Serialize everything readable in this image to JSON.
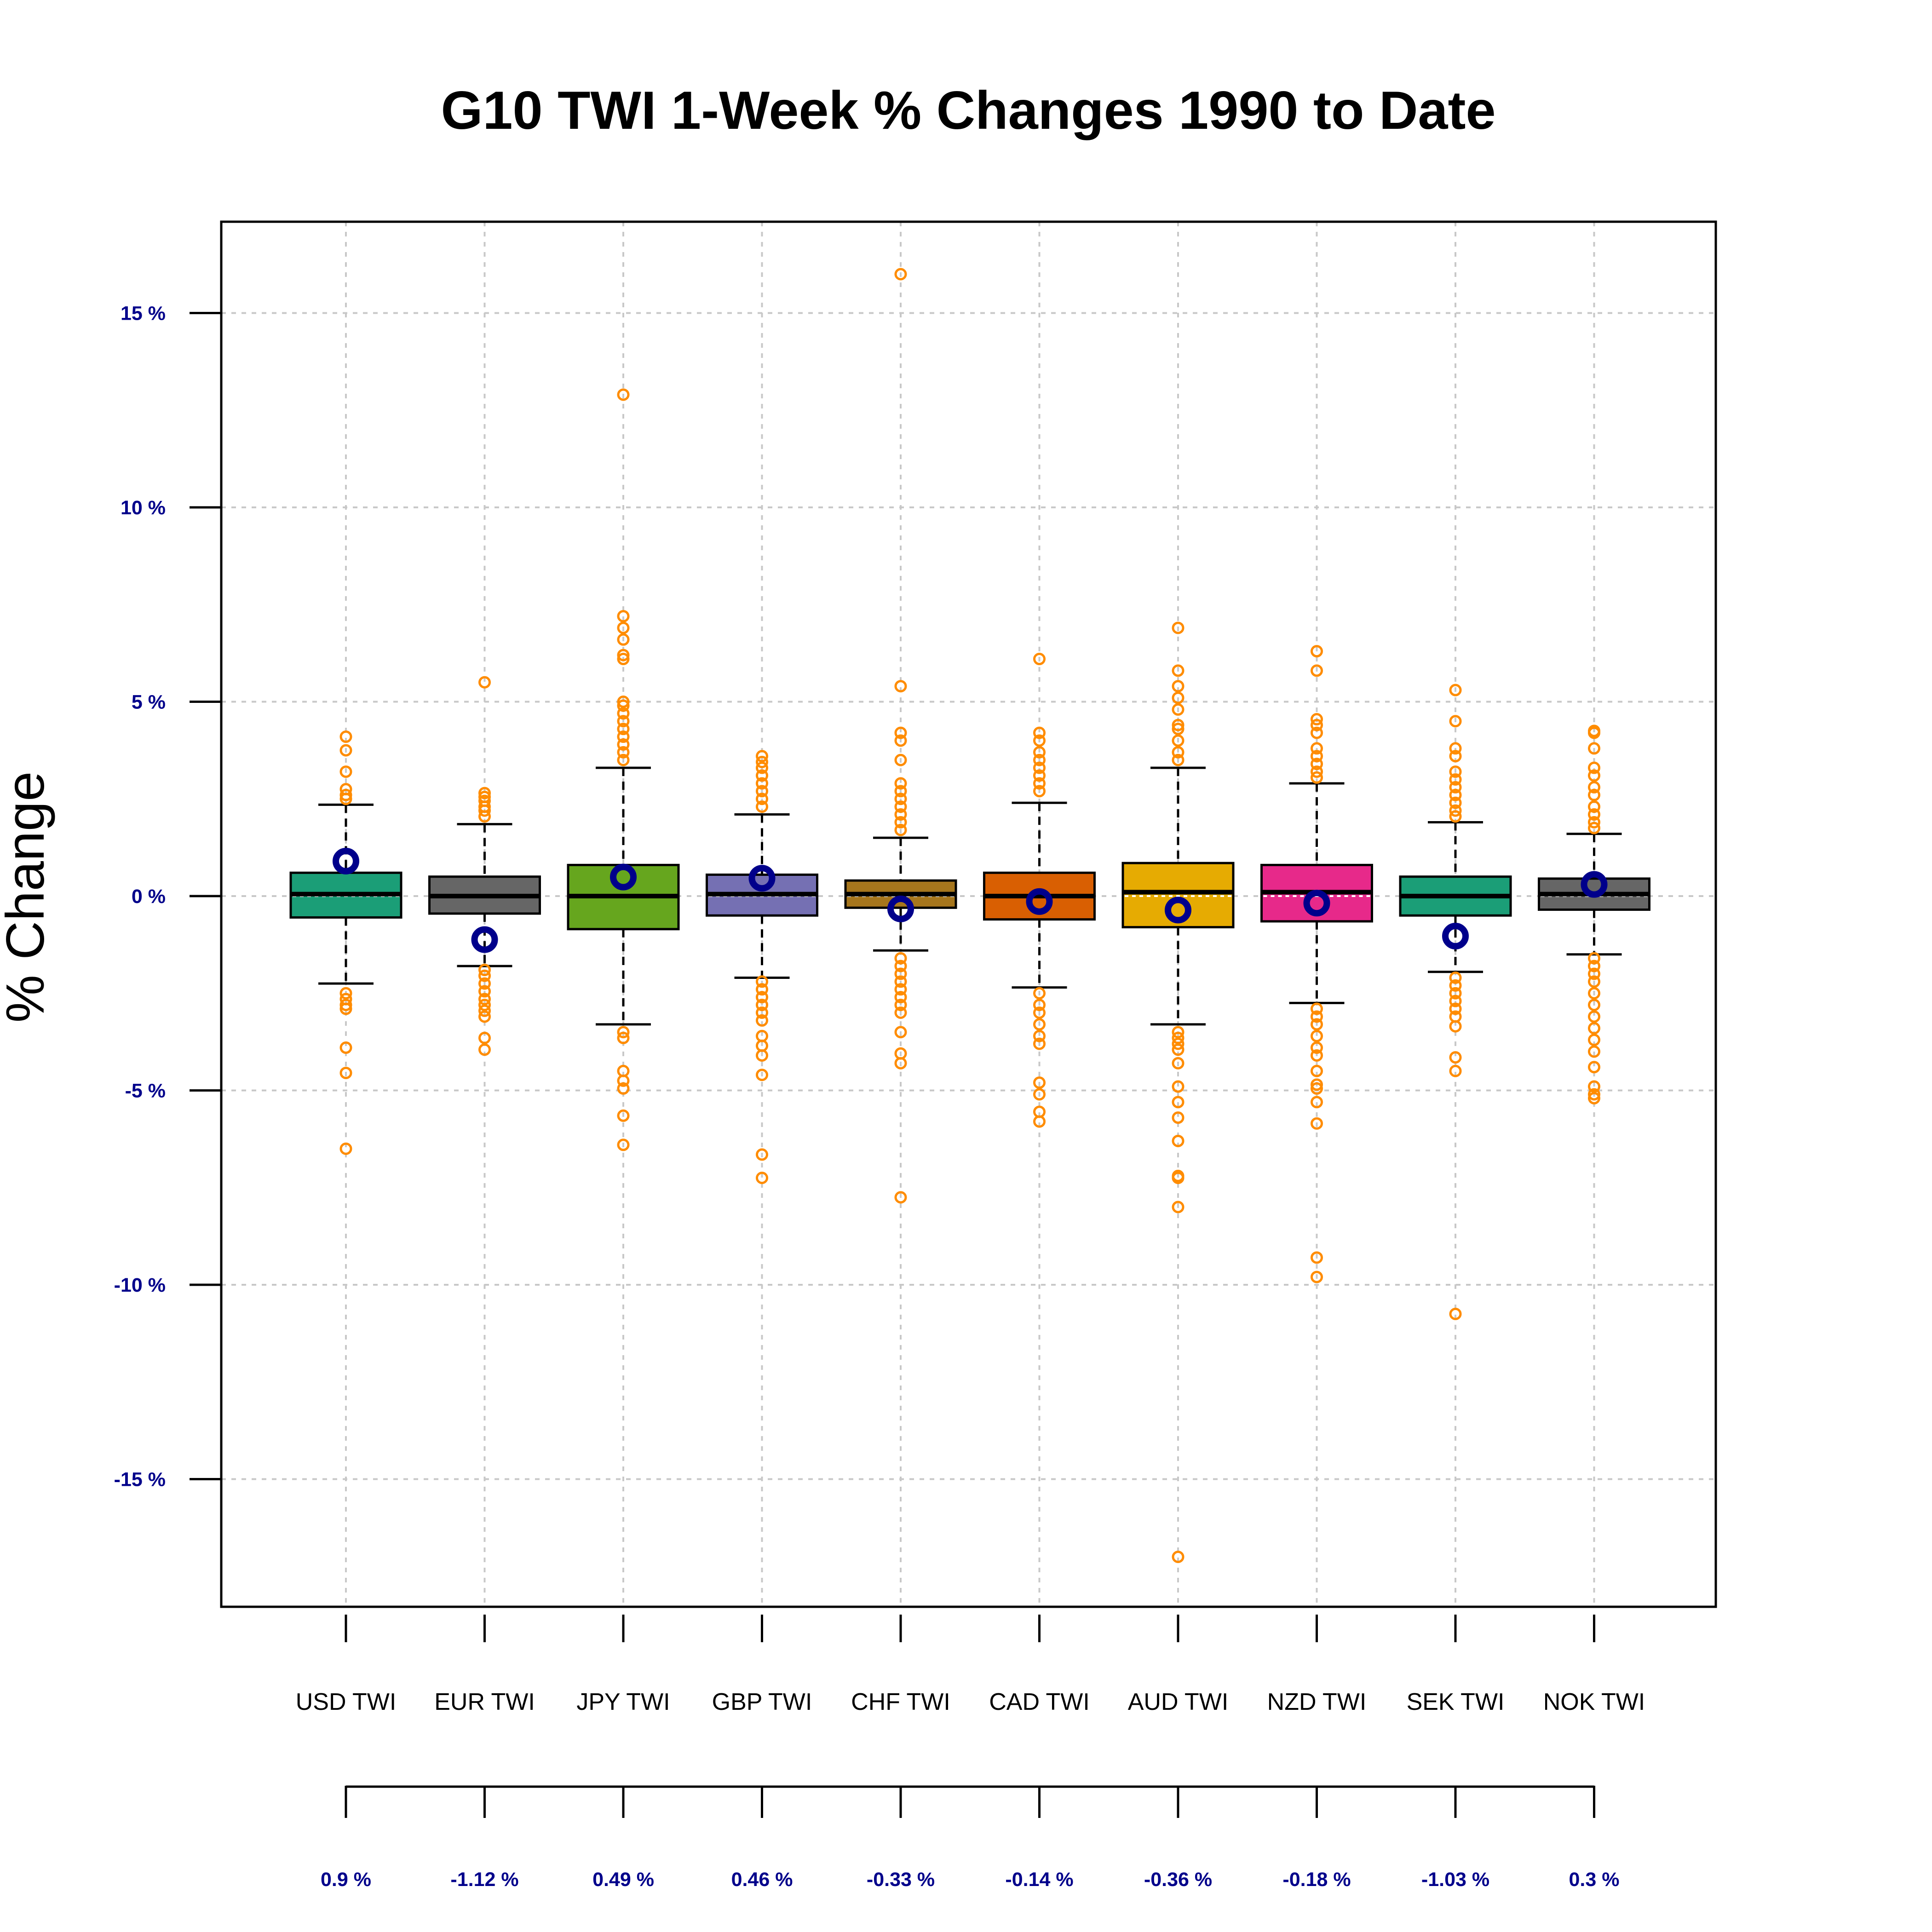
{
  "chart_data": {
    "type": "box",
    "title": "G10 TWI 1-Week % Changes 1990 to Date",
    "ylabel": "% Change",
    "xlabel": "",
    "ylim": [
      -18,
      17
    ],
    "yticks": [
      15,
      10,
      5,
      0,
      -5,
      -10,
      -15
    ],
    "ytick_labels": [
      "15 %",
      "10 %",
      "5 %",
      "0 %",
      "-5 %",
      "-10 %",
      "-15 %"
    ],
    "grid": true,
    "colors": {
      "outlier": "#FF8C00",
      "latest_marker": "#00008B",
      "tick_text": "#00008B",
      "grid": "#c8c8c8"
    },
    "series": [
      {
        "category": "USD TWI",
        "color": "#1B9E77",
        "whisker_low": -2.25,
        "q1": -0.55,
        "median": 0.05,
        "q3": 0.6,
        "whisker_high": 2.35,
        "latest": 0.9,
        "latest_label": "0.9 %",
        "outliers": [
          4.1,
          3.75,
          3.2,
          2.75,
          2.6,
          2.5,
          -2.5,
          -2.65,
          -2.8,
          -2.9,
          -3.9,
          -4.55,
          -6.5
        ]
      },
      {
        "category": "EUR TWI",
        "color": "#666666",
        "whisker_low": -1.8,
        "q1": -0.45,
        "median": 0.0,
        "q3": 0.5,
        "whisker_high": 1.85,
        "latest": -1.12,
        "latest_label": "-1.12 %",
        "outliers": [
          5.5,
          2.65,
          2.55,
          2.45,
          2.3,
          2.2,
          2.05,
          -1.9,
          -2.05,
          -2.25,
          -2.45,
          -2.65,
          -2.8,
          -2.95,
          -3.1,
          -3.65,
          -3.95
        ]
      },
      {
        "category": "JPY TWI",
        "color": "#66A61E",
        "whisker_low": -3.3,
        "q1": -0.85,
        "median": 0.0,
        "q3": 0.8,
        "whisker_high": 3.3,
        "latest": 0.49,
        "latest_label": "0.49 %",
        "outliers": [
          12.9,
          7.2,
          6.9,
          6.6,
          6.2,
          6.1,
          5.0,
          4.9,
          4.7,
          4.5,
          4.3,
          4.1,
          3.9,
          3.7,
          3.5,
          -3.5,
          -3.65,
          -4.5,
          -4.75,
          -4.95,
          -5.65,
          -6.4
        ]
      },
      {
        "category": "GBP TWI",
        "color": "#7570B3",
        "whisker_low": -2.1,
        "q1": -0.5,
        "median": 0.05,
        "q3": 0.55,
        "whisker_high": 2.1,
        "latest": 0.46,
        "latest_label": "0.46 %",
        "outliers": [
          3.6,
          3.45,
          3.3,
          3.1,
          2.9,
          2.7,
          2.5,
          2.3,
          -2.2,
          -2.4,
          -2.6,
          -2.8,
          -3.0,
          -3.2,
          -3.6,
          -3.85,
          -4.1,
          -4.6,
          -6.65,
          -7.25
        ]
      },
      {
        "category": "CHF TWI",
        "color": "#A6761D",
        "whisker_low": -1.4,
        "q1": -0.3,
        "median": 0.05,
        "q3": 0.4,
        "whisker_high": 1.5,
        "latest": -0.33,
        "latest_label": "-0.33 %",
        "outliers": [
          16.0,
          5.4,
          4.2,
          4.0,
          3.5,
          2.9,
          2.7,
          2.5,
          2.3,
          2.1,
          1.9,
          1.7,
          -1.6,
          -1.8,
          -2.0,
          -2.2,
          -2.4,
          -2.6,
          -2.8,
          -3.0,
          -3.5,
          -4.05,
          -4.3,
          -7.75
        ]
      },
      {
        "category": "CAD TWI",
        "color": "#D95F02",
        "whisker_low": -2.35,
        "q1": -0.6,
        "median": 0.0,
        "q3": 0.6,
        "whisker_high": 2.4,
        "latest": -0.14,
        "latest_label": "-0.14 %",
        "outliers": [
          6.1,
          4.2,
          4.0,
          3.7,
          3.5,
          3.3,
          3.1,
          2.9,
          2.7,
          -2.5,
          -2.8,
          -3.0,
          -3.3,
          -3.6,
          -3.8,
          -4.8,
          -5.1,
          -5.55,
          -5.8
        ]
      },
      {
        "category": "AUD TWI",
        "color": "#E6AB02",
        "whisker_low": -3.3,
        "q1": -0.8,
        "median": 0.1,
        "q3": 0.85,
        "whisker_high": 3.3,
        "latest": -0.36,
        "latest_label": "-0.36 %",
        "outliers": [
          6.9,
          5.8,
          5.4,
          5.1,
          4.8,
          4.4,
          4.3,
          4.0,
          3.7,
          3.5,
          -3.5,
          -3.65,
          -3.8,
          -3.95,
          -4.3,
          -4.9,
          -5.3,
          -5.7,
          -6.3,
          -7.2,
          -7.25,
          -8.0,
          -17.0
        ]
      },
      {
        "category": "NZD TWI",
        "color": "#E7298A",
        "whisker_low": -2.75,
        "q1": -0.65,
        "median": 0.1,
        "q3": 0.8,
        "whisker_high": 2.9,
        "latest": -0.18,
        "latest_label": "-0.18 %",
        "outliers": [
          6.3,
          5.8,
          4.55,
          4.4,
          4.2,
          3.8,
          3.6,
          3.4,
          3.2,
          3.05,
          -2.9,
          -3.1,
          -3.3,
          -3.6,
          -3.9,
          -4.1,
          -4.5,
          -4.85,
          -4.95,
          -5.3,
          -5.85,
          -9.3,
          -9.8
        ]
      },
      {
        "category": "SEK TWI",
        "color": "#1B9E77",
        "whisker_low": -1.95,
        "q1": -0.5,
        "median": 0.0,
        "q3": 0.5,
        "whisker_high": 1.9,
        "latest": -1.03,
        "latest_label": "-1.03 %",
        "outliers": [
          5.3,
          4.5,
          3.8,
          3.6,
          3.2,
          3.0,
          2.8,
          2.6,
          2.4,
          2.2,
          2.05,
          -2.1,
          -2.3,
          -2.5,
          -2.7,
          -2.9,
          -3.1,
          -3.35,
          -4.15,
          -4.5,
          -10.75
        ]
      },
      {
        "category": "NOK TWI",
        "color": "#666666",
        "whisker_low": -1.5,
        "q1": -0.35,
        "median": 0.05,
        "q3": 0.45,
        "whisker_high": 1.6,
        "latest": 0.3,
        "latest_label": "0.3 %",
        "outliers": [
          4.25,
          4.2,
          3.8,
          3.3,
          3.1,
          2.8,
          2.6,
          2.3,
          2.1,
          1.9,
          1.75,
          -1.6,
          -1.8,
          -2.0,
          -2.2,
          -2.5,
          -2.8,
          -3.1,
          -3.4,
          -3.7,
          -4.0,
          -4.4,
          -4.9,
          -5.1,
          -5.2
        ]
      }
    ]
  }
}
